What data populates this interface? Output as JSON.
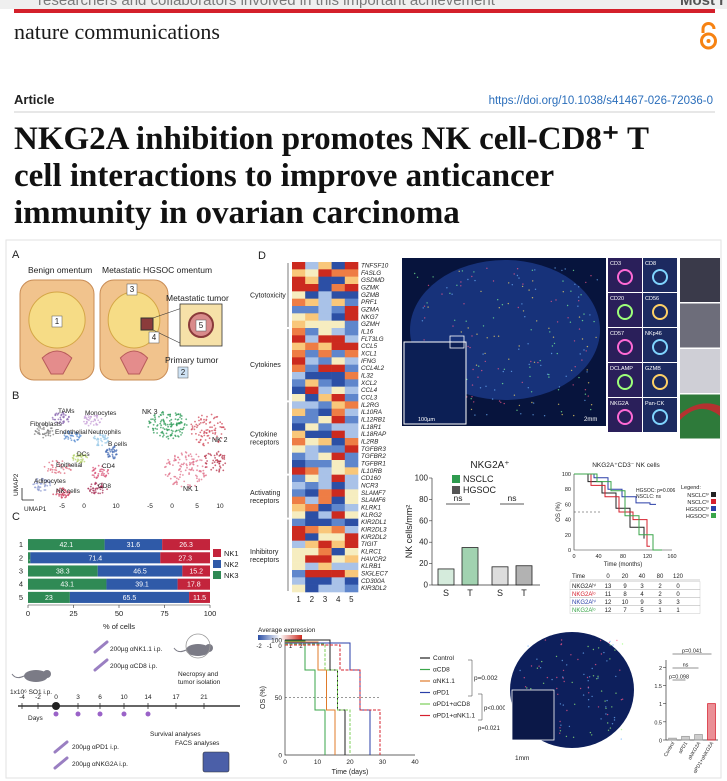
{
  "header": {
    "clipped_text": "researchers and collaborators involved in this important achievement",
    "clipped_right": "Most r",
    "journal": "nature communications"
  },
  "article": {
    "type": "Article",
    "doi": "https://doi.org/10.1038/s41467-026-72036-0",
    "title_lines": [
      "NKG2A inhibition promotes NK cell-CD8⁺ T",
      "cell interactions to improve anticancer",
      "immunity in ovarian carcinoma"
    ]
  },
  "figure": {
    "panel_letters": [
      "A",
      "B",
      "C",
      "D"
    ],
    "panel_a": {
      "labels": [
        "Benign omentum",
        "Metastatic HGSOC omentum",
        "Metastatic tumor",
        "Primary tumor"
      ],
      "numbers": [
        "1",
        "3",
        "4",
        "5",
        "2"
      ]
    },
    "panel_b": {
      "clusters": [
        "TAMs",
        "Monocytes",
        "Fibroblasts",
        "Endothelial",
        "Neutrophils",
        "B cells",
        "DCs",
        "Epithelial",
        "CD4",
        "Adipocytes",
        "NK cells",
        "CD8"
      ],
      "nk_clusters": [
        "NK 3",
        "NK 2",
        "NK 1"
      ],
      "x_axis": "UMAP1",
      "y_axis": "UMAP2",
      "ticks_left": [
        "-5",
        "0",
        "10"
      ],
      "ticks_right": [
        "-5",
        "0",
        "5",
        "10"
      ]
    },
    "panel_d": {
      "genes": [
        "TNFSF10",
        "FASLG",
        "GSDMD",
        "GZMK",
        "GZMB",
        "PRF1",
        "GZMA",
        "NKG7",
        "GZMH",
        "IL16",
        "FLT3LG",
        "CCL5",
        "XCL1",
        "IFNG",
        "CCL4L2",
        "IL32",
        "XCL2",
        "CCL4",
        "CCL3",
        "IL2RG",
        "IL10RA",
        "IL12RB1",
        "IL18R1",
        "IL18RAP",
        "IL2RB",
        "TGFBR3",
        "TGFBR2",
        "TGFBR1",
        "IL10RB",
        "CD160",
        "NCR3",
        "SLAMF7",
        "SLAMF6",
        "KLRK1",
        "KLRG2",
        "KIR2DL1",
        "KIR2DL3",
        "KIR2DL2",
        "TIGIT",
        "KLRC1",
        "HAVCR2",
        "KLRB1",
        "SIGLEC7",
        "CD300A",
        "KIR3DL2"
      ],
      "groups": [
        [
          "Cytotoxicity"
        ],
        [
          "Cytokines"
        ],
        [
          "Cytokine",
          "receptors"
        ],
        [
          "Activating",
          "receptors"
        ],
        [
          "Inhibitory",
          "receptors"
        ]
      ],
      "columns": [
        "1",
        "2",
        "3",
        "4",
        "5"
      ],
      "colorbar_title": "Average expression",
      "colorbar_ticks": [
        "-2",
        "-1",
        "0",
        "1",
        "2"
      ],
      "markers": [
        "CD3",
        "CD8",
        "CD20",
        "CD56",
        "CD57",
        "NKp46",
        "DCLAMP",
        "GZMB",
        "NKG2A",
        "Pan-CK"
      ],
      "scales": [
        "2mm",
        "100µm",
        "10µm"
      ]
    },
    "survival_nk": {
      "title": "NKG2A⁺CD3⁻ NK cells",
      "ylabel": "OS (%)",
      "xlabel": "Time (months)",
      "yticks": [
        "0",
        "20",
        "40",
        "60",
        "80",
        "100"
      ],
      "xticks": [
        "0",
        "40",
        "80",
        "120",
        "160"
      ],
      "legend_title": "Legend:",
      "legend": [
        "NSCLCʰⁱ",
        "NSCLCˡᵒ",
        "HGSOCʰⁱ",
        "HGSOCˡᵒ"
      ],
      "colors": [
        "#222222",
        "#d6202e",
        "#2a3fa8",
        "#3aa64a"
      ],
      "pvalues": [
        "HGSOC: p=0.006",
        "NSCLC: ns"
      ],
      "risk_header": [
        "Time",
        "0",
        "20",
        "40",
        "80",
        "120"
      ],
      "risk_labels": [
        "NKG2Aʰⁱ",
        "NKG2Aˡᵒ",
        "NKG2Aʰⁱ",
        "NKG2Aˡᵒ"
      ],
      "risk_rows": [
        [
          13,
          9,
          3,
          2,
          0
        ],
        [
          11,
          8,
          4,
          2,
          0
        ],
        [
          12,
          10,
          9,
          3,
          3
        ],
        [
          12,
          7,
          5,
          1,
          1
        ]
      ]
    },
    "mouse_model": {
      "injections": [
        "1x10⁶ SO1 i.p.",
        "200µg αNK1.1 i.p.",
        "200µg αCD8 i.p.",
        "200µg αPD1 i.p.",
        "200µg αNKG2A i.p."
      ],
      "steps": [
        "Necropsy and",
        "tumor isolation",
        "Survival analyses",
        "FACS analyses"
      ],
      "days_label": "Days",
      "days": [
        "-4",
        "-2",
        "0",
        "3",
        "6",
        "10",
        "14",
        "17",
        "21"
      ]
    },
    "survival_treatment": {
      "ylabel": "OS (%)",
      "xlabel": "Time (days)",
      "yticks": [
        "100",
        "50",
        "0"
      ],
      "xticks": [
        "0",
        "10",
        "20",
        "30",
        "40"
      ],
      "legend": [
        "Control",
        "αCD8",
        "αNK1.1",
        "αPD1",
        "αPD1+αCD8",
        "αPD1+αNK1.1"
      ],
      "colors": [
        "#222222",
        "#3aa64a",
        "#e07b2a",
        "#2a3fa8",
        "#7ccf5a",
        "#d6202e"
      ],
      "pvalues": [
        "p=0.002",
        "p<0.0001",
        "p=0.021"
      ]
    },
    "imaging": {
      "scale": "1mm"
    }
  },
  "chart_data": [
    {
      "type": "bar",
      "orientation": "horizontal",
      "stacked": true,
      "categories": [
        "1",
        "2",
        "3",
        "4",
        "5"
      ],
      "series": [
        {
          "name": "NK3",
          "color": "#2f8a55",
          "values": [
            42.1,
            1.3,
            38.3,
            43.1,
            23
          ]
        },
        {
          "name": "NK2",
          "color": "#2f5aa8",
          "values": [
            31.6,
            71.4,
            46.5,
            39.1,
            65.5
          ]
        },
        {
          "name": "NK1",
          "color": "#c3243c",
          "values": [
            26.3,
            27.3,
            15.2,
            17.8,
            11.5
          ]
        }
      ],
      "xlim": [
        0,
        100
      ],
      "xticks": [
        0,
        25,
        50,
        75,
        100
      ],
      "xlabel": "% of cells"
    },
    {
      "type": "bar",
      "orientation": "vertical",
      "stacked": false,
      "title": "NKG2A⁺",
      "ylabel": "NK cells/mm²",
      "categories": [
        "S",
        "T"
      ],
      "series": [
        {
          "name": "NSCLC",
          "color": "#2e9b4f",
          "values": [
            15,
            35
          ]
        },
        {
          "name": "HGSOC",
          "color": "#555555",
          "values": [
            17,
            18
          ]
        }
      ],
      "ylim": [
        0,
        100
      ],
      "yticks": [
        0,
        20,
        40,
        60,
        80,
        100
      ],
      "annotations": [
        "ns",
        "ns"
      ]
    },
    {
      "type": "bar",
      "orientation": "vertical",
      "stacked": false,
      "categories": [
        "Control",
        "αPD1",
        "αNKG2A",
        "αPD1+αNKG2A"
      ],
      "values": [
        0.05,
        0.1,
        0.15,
        1.0
      ],
      "colors": [
        "#9e9e9e",
        "#9e9e9e",
        "#9e9e9e",
        "#d6202e"
      ],
      "ylim": [
        0,
        2.2
      ],
      "yticks": [
        0,
        0.5,
        1,
        1.5,
        2
      ],
      "annotations": [
        "p=0.041",
        "ns",
        "p=0.098"
      ]
    }
  ]
}
